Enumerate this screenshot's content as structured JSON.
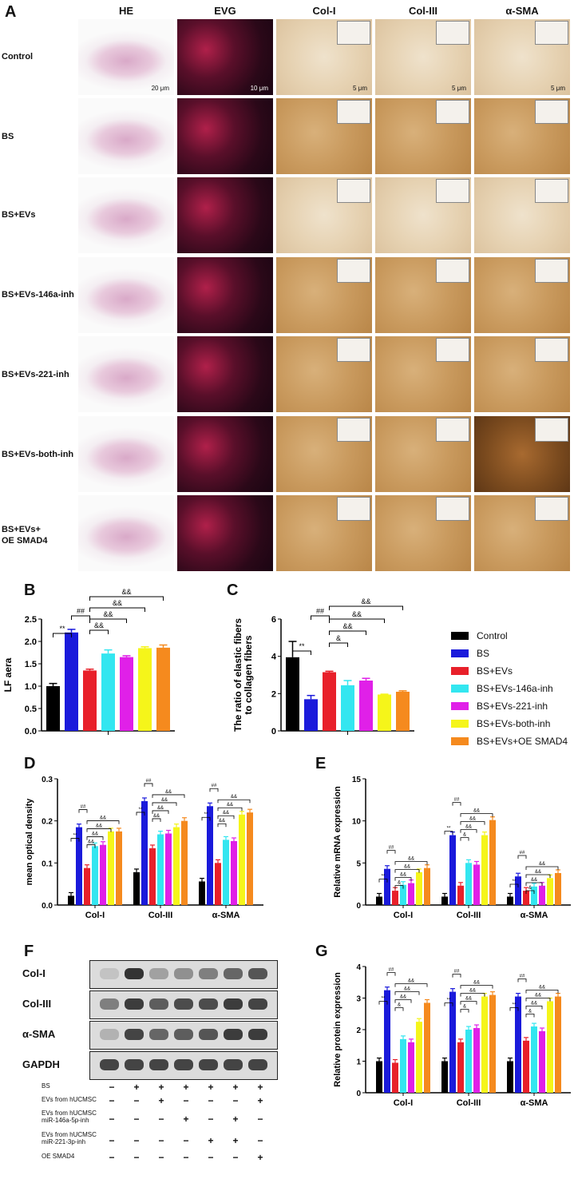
{
  "panel_A": {
    "letter": "A",
    "columns": [
      "HE",
      "EVG",
      "Col-I",
      "Col-III",
      "α-SMA"
    ],
    "rows": [
      "Control",
      "BS",
      "BS+EVs",
      "BS+EVs-146a-inh",
      "BS+EVs-221-inh",
      "BS+EVs-both-inh",
      "BS+EVs+\nOE SMAD4"
    ],
    "scale_bars": [
      "20 μm",
      "10 μm",
      "5 μm",
      "5 μm",
      "5 μm"
    ]
  },
  "colors": {
    "Control": "#000000",
    "BS": "#1a1adb",
    "BS+EVs": "#e8202a",
    "BS+EVs-146a-inh": "#33e6f0",
    "BS+EVs-221-inh": "#e020e8",
    "BS+EVs-both-inh": "#f5f51a",
    "BS+EVs+OE SMAD4": "#f58a1e"
  },
  "legend": {
    "entries": [
      "Control",
      "BS",
      "BS+EVs",
      "BS+EVs-146a-inh",
      "BS+EVs-221-inh",
      "BS+EVs-both-inh",
      "BS+EVs+OE SMAD4"
    ]
  },
  "chart_data": [
    {
      "panel": "B",
      "type": "bar",
      "ylabel": "LF aera",
      "ylim": [
        0,
        2.5
      ],
      "yticks": [
        "0.0",
        "0.5",
        "1.0",
        "1.5",
        "2.0",
        "2.5"
      ],
      "values": [
        1.0,
        2.2,
        1.35,
        1.73,
        1.65,
        1.85,
        1.86
      ],
      "errors": [
        0.06,
        0.07,
        0.03,
        0.08,
        0.03,
        0.03,
        0.06
      ],
      "annotations": [
        "**",
        "##",
        "&&",
        "&&",
        "&&",
        "&&"
      ]
    },
    {
      "panel": "C",
      "type": "bar",
      "ylabel": "The ratio of elastic fibers\nto collagen fibers",
      "ylim": [
        0,
        6
      ],
      "yticks": [
        "0",
        "2",
        "4",
        "6"
      ],
      "values": [
        3.95,
        1.7,
        3.15,
        2.45,
        2.7,
        1.95,
        2.1
      ],
      "errors": [
        0.85,
        0.2,
        0.05,
        0.25,
        0.12,
        0.02,
        0.05
      ],
      "annotations": [
        "**",
        "##",
        "&",
        "&&",
        "&&",
        "&&"
      ]
    },
    {
      "panel": "D",
      "type": "bar",
      "ylabel": "mean optical density",
      "ylim": [
        0,
        0.3
      ],
      "yticks": [
        "0.0",
        "0.1",
        "0.2",
        "0.3"
      ],
      "categories": [
        "Col-I",
        "Col-III",
        "α-SMA"
      ],
      "series_values": [
        [
          0.022,
          0.185,
          0.088,
          0.14,
          0.143,
          0.175,
          0.175
        ],
        [
          0.078,
          0.247,
          0.135,
          0.168,
          0.17,
          0.185,
          0.2
        ],
        [
          0.056,
          0.235,
          0.1,
          0.155,
          0.152,
          0.215,
          0.22
        ]
      ],
      "annotations": [
        "**",
        "##",
        "&&",
        "&&",
        "&&",
        "&&"
      ]
    },
    {
      "panel": "E",
      "type": "bar",
      "ylabel": "Relative mRNA expression",
      "ylim": [
        0,
        15
      ],
      "yticks": [
        "0",
        "5",
        "10",
        "15"
      ],
      "categories": [
        "Col-I",
        "Col-III",
        "α-SMA"
      ],
      "series_values": [
        [
          1.0,
          4.3,
          1.7,
          2.4,
          2.6,
          3.9,
          4.4
        ],
        [
          1.0,
          8.3,
          2.3,
          5.0,
          4.8,
          8.3,
          10.1
        ],
        [
          1.0,
          3.4,
          1.7,
          2.2,
          2.3,
          3.2,
          3.8
        ]
      ],
      "annotations": [
        "**",
        "##",
        "&",
        "&&",
        "&&",
        "&&"
      ]
    },
    {
      "panel": "G",
      "type": "bar",
      "ylabel": "Relative protein expression",
      "ylim": [
        0,
        4
      ],
      "yticks": [
        "0",
        "1",
        "2",
        "3",
        "4"
      ],
      "categories": [
        "Col-I",
        "Col-III",
        "α-SMA"
      ],
      "series_values": [
        [
          1.0,
          3.25,
          0.95,
          1.7,
          1.6,
          2.25,
          2.85
        ],
        [
          1.0,
          3.2,
          1.6,
          2.0,
          2.05,
          3.05,
          3.1
        ],
        [
          1.0,
          3.05,
          1.65,
          2.1,
          1.95,
          2.9,
          3.05
        ]
      ],
      "annotations": [
        "**",
        "##",
        "&",
        "&&",
        "&&",
        "&&"
      ]
    }
  ],
  "panel_F": {
    "letter": "F",
    "blots": [
      "Col-I",
      "Col-III",
      "α-SMA",
      "GAPDH"
    ],
    "conditions": [
      {
        "label": "BS",
        "signs": [
          "−",
          "+",
          "+",
          "+",
          "+",
          "+",
          "+"
        ]
      },
      {
        "label": "EVs from hUCMSC",
        "signs": [
          "−",
          "−",
          "+",
          "−",
          "−",
          "−",
          "+"
        ]
      },
      {
        "label": "EVs from hUCMSC\nmiR-146a-5p-inh",
        "signs": [
          "−",
          "−",
          "−",
          "+",
          "−",
          "+",
          "−"
        ]
      },
      {
        "label": "EVs from hUCMSC\nmiR-221-3p-inh",
        "signs": [
          "−",
          "−",
          "−",
          "−",
          "+",
          "+",
          "−"
        ]
      },
      {
        "label": "OE SMAD4",
        "signs": [
          "−",
          "−",
          "−",
          "−",
          "−",
          "−",
          "+"
        ]
      }
    ]
  },
  "letters": {
    "B": "B",
    "C": "C",
    "D": "D",
    "E": "E",
    "G": "G"
  }
}
